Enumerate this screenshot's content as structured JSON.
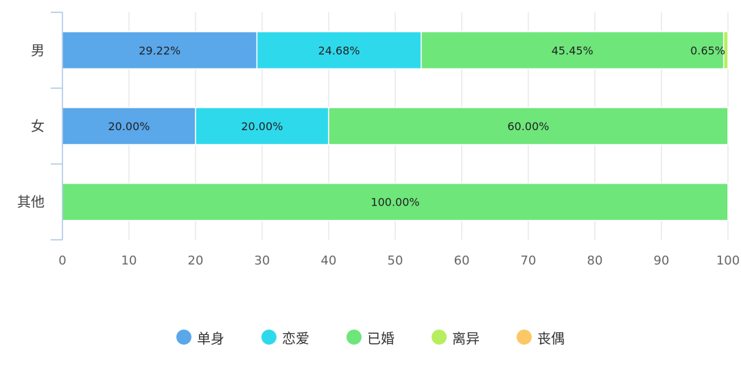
{
  "chart_data": {
    "type": "bar",
    "orientation": "horizontal",
    "stacked": true,
    "categories": [
      "男",
      "女",
      "其他"
    ],
    "series": [
      {
        "name": "单身",
        "color": "#5aa7ea",
        "values": [
          29.22,
          20.0,
          0
        ]
      },
      {
        "name": "恋爱",
        "color": "#2fd9ec",
        "values": [
          24.68,
          20.0,
          0
        ]
      },
      {
        "name": "已婚",
        "color": "#6ee67a",
        "values": [
          45.45,
          60.0,
          100.0
        ]
      },
      {
        "name": "离异",
        "color": "#b7ee5f",
        "values": [
          0.65,
          0,
          0
        ]
      },
      {
        "name": "丧偶",
        "color": "#fbc865",
        "values": [
          0,
          0,
          0
        ]
      }
    ],
    "data_labels": [
      [
        "29.22%",
        "24.68%",
        "45.45%",
        "0.65%",
        ""
      ],
      [
        "20.00%",
        "20.00%",
        "60.00%",
        "",
        ""
      ],
      [
        "",
        "",
        "100.00%",
        "",
        ""
      ]
    ],
    "xlim": [
      0,
      100
    ],
    "xticks": [
      0,
      10,
      20,
      30,
      40,
      50,
      60,
      70,
      80,
      90,
      100
    ],
    "grid": true,
    "legend_position": "bottom-center",
    "title": "",
    "xlabel": "",
    "ylabel": ""
  }
}
